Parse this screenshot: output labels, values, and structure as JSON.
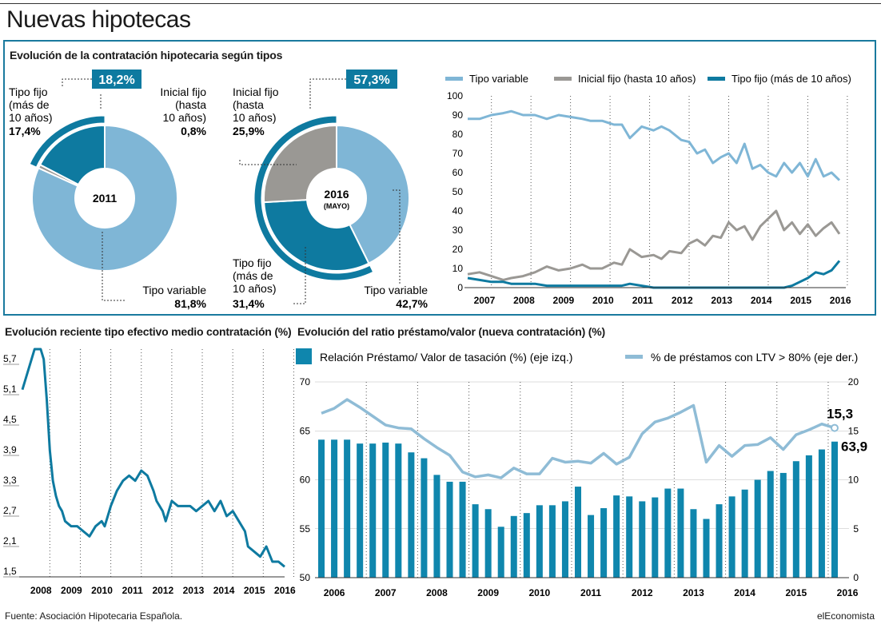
{
  "title": "Nuevas hipotecas",
  "colors": {
    "tipo_variable": "#7fb6d6",
    "inicial_fijo": "#9a9894",
    "tipo_fijo": "#0e7aa0",
    "border": "#1a7a9e",
    "bar": "#0f86ad",
    "line_light": "#8fbcd6"
  },
  "top_panel": {
    "title": "Evolución de la contratación hipotecaria según tipos"
  },
  "footer": {
    "source": "Fuente: Asociación Hipotecaria Española.",
    "brand": "elEconomista"
  },
  "chart_data": [
    {
      "type": "pie",
      "subtype": "donut",
      "center_label": "2011",
      "highlight_badge": "18,2%",
      "slices": [
        {
          "name": "Tipo variable",
          "value": 81.8,
          "label": "81,8%"
        },
        {
          "name": "Inicial fijo (hasta 10 años)",
          "value": 0.8,
          "label": "0,8%"
        },
        {
          "name": "Tipo fijo (más de 10 años)",
          "value": 17.4,
          "label": "17,4%"
        }
      ],
      "labels": {
        "fijo": [
          "Tipo fijo",
          "(más de",
          "10 años)"
        ],
        "inicial": [
          "Inicial fijo",
          "(hasta",
          "10 años)"
        ],
        "variable": [
          "Tipo variable"
        ]
      }
    },
    {
      "type": "pie",
      "subtype": "donut",
      "center_label": "2016",
      "center_sublabel": "(MAYO)",
      "highlight_badge": "57,3%",
      "slices": [
        {
          "name": "Tipo variable",
          "value": 42.7,
          "label": "42,7%"
        },
        {
          "name": "Tipo fijo (más de 10 años)",
          "value": 31.4,
          "label": "31,4%"
        },
        {
          "name": "Inicial fijo (hasta 10 años)",
          "value": 25.9,
          "label": "25,9%"
        }
      ],
      "labels": {
        "inicial": [
          "Inicial fijo",
          "(hasta",
          "10 años)"
        ],
        "fijo": [
          "Tipo fijo",
          "(más de",
          "10 años)"
        ],
        "variable": [
          "Tipo variable"
        ]
      }
    },
    {
      "type": "line",
      "legend": [
        "Tipo variable",
        "Inicial fijo (hasta 10 años)",
        "Tipo fijo (más de 10 años)"
      ],
      "ylim": [
        0,
        100
      ],
      "yticks": [
        0,
        10,
        20,
        30,
        40,
        50,
        60,
        70,
        80,
        90,
        100
      ],
      "xticks": [
        "2007",
        "2008",
        "2009",
        "2010",
        "2011",
        "2012",
        "2013",
        "2014",
        "2015",
        "2016"
      ],
      "x_range": [
        2006.9,
        2016.3
      ],
      "grid": "vertical dotted",
      "series": [
        {
          "name": "Tipo variable",
          "x": [
            2006.9,
            2007.2,
            2007.5,
            2007.8,
            2008.0,
            2008.3,
            2008.6,
            2008.9,
            2009.2,
            2009.5,
            2009.8,
            2010.0,
            2010.3,
            2010.6,
            2010.8,
            2011.0,
            2011.3,
            2011.6,
            2011.8,
            2012.0,
            2012.3,
            2012.5,
            2012.7,
            2012.9,
            2013.1,
            2013.3,
            2013.5,
            2013.7,
            2013.9,
            2014.1,
            2014.3,
            2014.5,
            2014.7,
            2014.9,
            2015.1,
            2015.3,
            2015.5,
            2015.7,
            2015.9,
            2016.1,
            2016.3
          ],
          "y": [
            88,
            88,
            90,
            91,
            92,
            90,
            90,
            88,
            90,
            89,
            88,
            87,
            87,
            85,
            85,
            78,
            84,
            82,
            84,
            82,
            77,
            76,
            70,
            72,
            65,
            68,
            70,
            65,
            75,
            62,
            64,
            60,
            58,
            65,
            60,
            65,
            58,
            67,
            58,
            60,
            56
          ]
        },
        {
          "name": "Inicial fijo (hasta 10 años)",
          "x": [
            2006.9,
            2007.2,
            2007.5,
            2007.8,
            2008.0,
            2008.3,
            2008.6,
            2008.9,
            2009.2,
            2009.5,
            2009.8,
            2010.0,
            2010.3,
            2010.6,
            2010.8,
            2011.0,
            2011.3,
            2011.6,
            2011.8,
            2012.0,
            2012.3,
            2012.5,
            2012.7,
            2012.9,
            2013.1,
            2013.3,
            2013.5,
            2013.7,
            2013.9,
            2014.1,
            2014.3,
            2014.5,
            2014.7,
            2014.9,
            2015.1,
            2015.3,
            2015.5,
            2015.7,
            2015.9,
            2016.1,
            2016.3
          ],
          "y": [
            7,
            8,
            6,
            4,
            5,
            6,
            8,
            11,
            9,
            10,
            12,
            10,
            10,
            13,
            12,
            20,
            16,
            17,
            15,
            19,
            18,
            23,
            25,
            22,
            27,
            26,
            34,
            30,
            32,
            25,
            32,
            36,
            40,
            30,
            34,
            28,
            33,
            27,
            31,
            34,
            28
          ]
        },
        {
          "name": "Tipo fijo (más de 10 años)",
          "x": [
            2006.9,
            2007.2,
            2007.5,
            2007.8,
            2008.0,
            2008.3,
            2008.6,
            2008.9,
            2009.2,
            2009.5,
            2009.8,
            2010.0,
            2010.3,
            2010.6,
            2010.8,
            2011.0,
            2011.3,
            2011.6,
            2011.8,
            2012.0,
            2012.3,
            2012.5,
            2012.7,
            2012.9,
            2013.1,
            2013.3,
            2013.5,
            2013.7,
            2013.9,
            2014.1,
            2014.3,
            2014.5,
            2014.7,
            2014.9,
            2015.1,
            2015.3,
            2015.5,
            2015.7,
            2015.9,
            2016.1,
            2016.3
          ],
          "y": [
            5,
            4,
            3,
            3,
            2,
            2,
            2,
            1,
            1,
            1,
            1,
            1,
            1,
            1,
            1,
            2,
            1,
            0,
            0,
            0,
            0,
            0,
            0,
            0,
            0,
            0,
            0,
            0,
            0,
            0,
            0,
            0,
            0,
            0,
            1,
            3,
            5,
            8,
            7,
            9,
            14
          ]
        }
      ]
    },
    {
      "type": "line",
      "title": "Evolución reciente tipo efectivo medio contratación (%)",
      "ylim": [
        1.5,
        6.0
      ],
      "yticks": [
        "1,5",
        "2,1",
        "2,7",
        "3,3",
        "3,9",
        "4,5",
        "5,1",
        "5,7"
      ],
      "ytick_values": [
        1.5,
        2.1,
        2.7,
        3.3,
        3.9,
        4.5,
        5.1,
        5.7
      ],
      "xticks": [
        "2008",
        "2009",
        "2010",
        "2011",
        "2012",
        "2013",
        "2014",
        "2015",
        "2016"
      ],
      "x_range": [
        2007.6,
        2016.2
      ],
      "series": [
        {
          "name": "",
          "x": [
            2007.6,
            2007.7,
            2007.8,
            2007.9,
            2008.0,
            2008.2,
            2008.3,
            2008.4,
            2008.5,
            2008.6,
            2008.7,
            2008.8,
            2008.9,
            2009.0,
            2009.2,
            2009.4,
            2009.6,
            2009.8,
            2010.0,
            2010.2,
            2010.3,
            2010.5,
            2010.7,
            2010.9,
            2011.1,
            2011.3,
            2011.5,
            2011.7,
            2011.9,
            2012.0,
            2012.1,
            2012.2,
            2012.3,
            2012.5,
            2012.7,
            2012.9,
            2013.1,
            2013.3,
            2013.5,
            2013.7,
            2013.9,
            2014.1,
            2014.3,
            2014.5,
            2014.7,
            2014.9,
            2015.0,
            2015.2,
            2015.4,
            2015.6,
            2015.8,
            2016.0,
            2016.2
          ],
          "y": [
            5.2,
            5.4,
            5.6,
            5.8,
            6.0,
            6.0,
            5.8,
            5.0,
            4.0,
            3.4,
            3.1,
            2.9,
            2.8,
            2.6,
            2.5,
            2.5,
            2.4,
            2.3,
            2.5,
            2.6,
            2.5,
            2.9,
            3.2,
            3.4,
            3.5,
            3.4,
            3.6,
            3.5,
            3.2,
            3.0,
            2.9,
            2.8,
            2.6,
            3.0,
            2.9,
            2.9,
            2.9,
            2.8,
            2.9,
            3.0,
            2.8,
            3.0,
            2.7,
            2.8,
            2.6,
            2.4,
            2.1,
            2.0,
            1.9,
            2.1,
            1.8,
            1.8,
            1.7
          ]
        }
      ]
    },
    {
      "type": "bar",
      "title": "Evolución del ratio préstamo/valor (nueva contratación) (%)",
      "legend": [
        "Relación Préstamo/ Valor de tasación (%) (eje izq.)",
        "% de préstamos con LTV > 80% (eje der.)"
      ],
      "ylim": [
        50,
        70
      ],
      "yticks": [
        50,
        55,
        60,
        65,
        70
      ],
      "y2lim": [
        0,
        20
      ],
      "y2ticks": [
        0,
        5,
        10,
        15,
        20
      ],
      "xticks": [
        "2006",
        "2007",
        "2008",
        "2009",
        "2010",
        "2011",
        "2012",
        "2013",
        "2014",
        "2015",
        "2016"
      ],
      "annotations": [
        "63,9",
        "15,3"
      ],
      "series": [
        {
          "name": "Relación Préstamo/ Valor de tasación (%) (eje izq.)",
          "axis": "left",
          "values": [
            64.1,
            64.1,
            64.1,
            63.7,
            63.7,
            63.8,
            63.7,
            62.8,
            62.2,
            60.5,
            59.8,
            59.8,
            57.5,
            57.0,
            55.2,
            56.3,
            56.6,
            57.4,
            57.4,
            57.8,
            59.3,
            56.4,
            57.1,
            58.4,
            58.3,
            57.8,
            58.2,
            59.1,
            59.1,
            57.0,
            56.0,
            57.5,
            58.3,
            59.0,
            60.0,
            60.9,
            60.7,
            61.9,
            62.5,
            63.1,
            63.9
          ]
        },
        {
          "name": "% de préstamos con LTV > 80% (eje der.)",
          "axis": "right",
          "values": [
            16.8,
            17.3,
            18.2,
            17.4,
            16.5,
            15.6,
            15.3,
            15.2,
            14.2,
            13.3,
            12.5,
            10.8,
            10.3,
            10.5,
            10.2,
            11.2,
            10.6,
            10.6,
            12.2,
            11.8,
            11.9,
            11.7,
            12.7,
            11.6,
            12.3,
            14.7,
            15.9,
            16.3,
            16.9,
            17.6,
            11.8,
            13.5,
            12.4,
            13.5,
            13.6,
            14.3,
            13.1,
            14.6,
            15.1,
            15.7,
            15.3
          ]
        }
      ]
    }
  ]
}
